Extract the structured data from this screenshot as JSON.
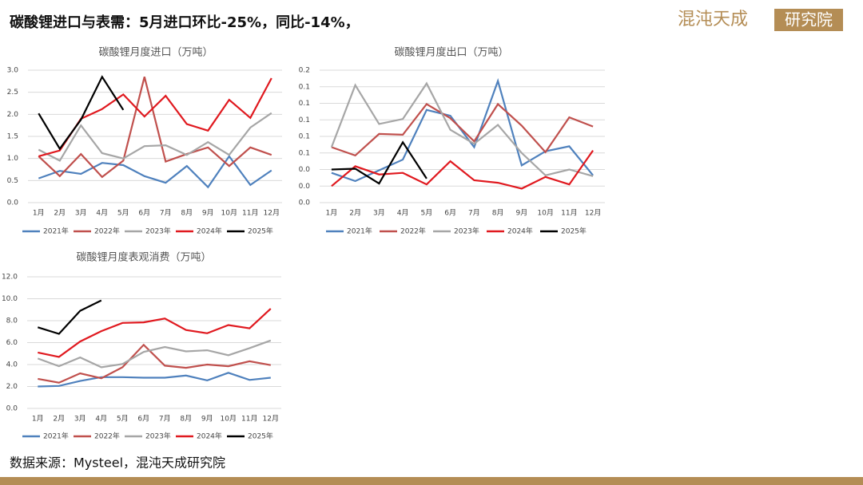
{
  "header": {
    "title": "碳酸锂进口与表需：5月进口环比-25%，同比-14%，",
    "logo_main": "混沌天成",
    "logo_box": "研究院"
  },
  "source": "数据来源：Mysteel，混沌天成研究院",
  "chart_data": [
    {
      "type": "line",
      "title": "碳酸锂月度进口（万吨）",
      "categories": [
        "1月",
        "2月",
        "3月",
        "4月",
        "5月",
        "6月",
        "7月",
        "8月",
        "9月",
        "10月",
        "11月",
        "12月"
      ],
      "ylim": [
        0,
        3
      ],
      "grid": true,
      "yticks": [
        {
          "value": 0,
          "label": "0.0"
        },
        {
          "value": 0.5,
          "label": "0.5"
        },
        {
          "value": 1,
          "label": "1.0"
        },
        {
          "value": 1.5,
          "label": "1.5"
        },
        {
          "value": 2,
          "label": "2.0"
        },
        {
          "value": 2.5,
          "label": "2.5"
        },
        {
          "value": 3,
          "label": "3.0"
        }
      ],
      "series": [
        {
          "name": "2021年",
          "color": "#4f81bd",
          "values": [
            0.55,
            0.72,
            0.65,
            0.9,
            0.85,
            0.6,
            0.45,
            0.83,
            0.35,
            1.05,
            0.4,
            0.73
          ]
        },
        {
          "name": "2022年",
          "color": "#c0504d",
          "values": [
            1.05,
            0.6,
            1.1,
            0.58,
            0.95,
            2.85,
            0.93,
            1.1,
            1.25,
            0.83,
            1.25,
            1.08
          ]
        },
        {
          "name": "2023年",
          "color": "#a6a6a6",
          "values": [
            1.2,
            0.95,
            1.75,
            1.12,
            1.0,
            1.28,
            1.3,
            1.08,
            1.37,
            1.08,
            1.7,
            2.03
          ]
        },
        {
          "name": "2024年",
          "color": "#e0191f",
          "values": [
            1.05,
            1.18,
            1.9,
            2.12,
            2.45,
            1.95,
            2.42,
            1.78,
            1.63,
            2.33,
            1.92,
            2.82
          ]
        },
        {
          "name": "2025年",
          "color": "#000000",
          "values": [
            2.02,
            1.22,
            1.88,
            2.85,
            2.1,
            null,
            null,
            null,
            null,
            null,
            null,
            null
          ]
        }
      ]
    },
    {
      "type": "line",
      "title": "碳酸锂月度出口（万吨）",
      "categories": [
        "1月",
        "2月",
        "3月",
        "4月",
        "5月",
        "6月",
        "7月",
        "8月",
        "9月",
        "10月",
        "11月",
        "12月"
      ],
      "ylim": [
        0,
        0.16
      ],
      "grid": true,
      "yticks": [
        {
          "value": 0,
          "label": "0.0"
        },
        {
          "value": 0.02,
          "label": "0.0"
        },
        {
          "value": 0.04,
          "label": "0.0"
        },
        {
          "value": 0.06,
          "label": "0.1"
        },
        {
          "value": 0.08,
          "label": "0.1"
        },
        {
          "value": 0.1,
          "label": "0.1"
        },
        {
          "value": 0.12,
          "label": "0.1"
        },
        {
          "value": 0.14,
          "label": "0.1"
        },
        {
          "value": 0.16,
          "label": "0.2"
        }
      ],
      "series": [
        {
          "name": "2021年",
          "color": "#4f81bd",
          "values": [
            0.036,
            0.026,
            0.039,
            0.052,
            0.112,
            0.105,
            0.067,
            0.147,
            0.045,
            0.062,
            0.068,
            0.033
          ]
        },
        {
          "name": "2022年",
          "color": "#c0504d",
          "values": [
            0.067,
            0.057,
            0.083,
            0.082,
            0.119,
            0.102,
            0.074,
            0.119,
            0.093,
            0.061,
            0.103,
            0.092
          ]
        },
        {
          "name": "2023年",
          "color": "#a6a6a6",
          "values": [
            0.067,
            0.142,
            0.095,
            0.101,
            0.144,
            0.088,
            0.071,
            0.094,
            0.06,
            0.033,
            0.04,
            0.032
          ]
        },
        {
          "name": "2024年",
          "color": "#e0191f",
          "values": [
            0.02,
            0.044,
            0.034,
            0.036,
            0.022,
            0.05,
            0.027,
            0.024,
            0.017,
            0.031,
            0.022,
            0.063
          ]
        },
        {
          "name": "2025年",
          "color": "#000000",
          "values": [
            0.04,
            0.041,
            0.023,
            0.073,
            0.029,
            null,
            null,
            null,
            null,
            null,
            null,
            null
          ]
        }
      ]
    },
    {
      "type": "line",
      "title": "碳酸锂月度表观消费（万吨）",
      "categories": [
        "1月",
        "2月",
        "3月",
        "4月",
        "5月",
        "6月",
        "7月",
        "8月",
        "9月",
        "10月",
        "11月",
        "12月"
      ],
      "ylim": [
        0,
        12
      ],
      "grid": true,
      "yticks": [
        {
          "value": 0,
          "label": "0.0"
        },
        {
          "value": 2,
          "label": "2.0"
        },
        {
          "value": 4,
          "label": "4.0"
        },
        {
          "value": 6,
          "label": "6.0"
        },
        {
          "value": 8,
          "label": "8.0"
        },
        {
          "value": 10,
          "label": "10.0"
        },
        {
          "value": 12,
          "label": "12.0"
        }
      ],
      "series": [
        {
          "name": "2021年",
          "color": "#4f81bd",
          "values": [
            2.0,
            2.05,
            2.5,
            2.85,
            2.85,
            2.8,
            2.8,
            3.0,
            2.55,
            3.25,
            2.6,
            2.8
          ]
        },
        {
          "name": "2022年",
          "color": "#c0504d",
          "values": [
            2.7,
            2.35,
            3.2,
            2.75,
            3.75,
            5.8,
            3.9,
            3.7,
            4.0,
            3.85,
            4.3,
            3.95
          ]
        },
        {
          "name": "2023年",
          "color": "#a6a6a6",
          "values": [
            4.55,
            3.85,
            4.65,
            3.75,
            4.05,
            5.15,
            5.6,
            5.2,
            5.3,
            4.85,
            5.5,
            6.2
          ]
        },
        {
          "name": "2024年",
          "color": "#e0191f",
          "values": [
            5.1,
            4.7,
            6.1,
            7.05,
            7.8,
            7.85,
            8.2,
            7.15,
            6.85,
            7.6,
            7.3,
            9.1
          ]
        },
        {
          "name": "2025年",
          "color": "#000000",
          "values": [
            7.4,
            6.8,
            8.9,
            9.85,
            null,
            null,
            null,
            null,
            null,
            null,
            null,
            null
          ]
        }
      ]
    }
  ]
}
